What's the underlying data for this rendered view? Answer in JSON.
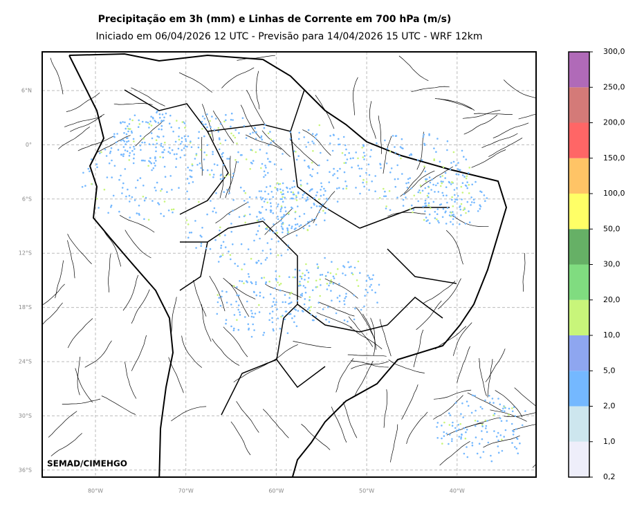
{
  "header": {
    "title": "Precipitação em 3h (mm) e Linhas de Corrente em 700 hPa (m/s)",
    "subtitle": "Iniciado em 06/04/2026 12 UTC - Previsão para 14/04/2026 15 UTC - WRF 12km"
  },
  "map": {
    "lat_labels": [
      "6°N",
      "0°",
      "6°S",
      "12°S",
      "18°S",
      "24°S",
      "30°S",
      "36°S"
    ],
    "lon_labels": [
      "80°W",
      "70°W",
      "60°W",
      "50°W",
      "40°W"
    ],
    "credit": "SEMAD/CIMEHGO"
  },
  "colorbar": {
    "labels": [
      "0,2",
      "1,0",
      "2,0",
      "5,0",
      "10,0",
      "20,0",
      "30,0",
      "50,0",
      "100,0",
      "150,0",
      "200,0",
      "250,0",
      "300,0"
    ],
    "colors": [
      "#eeeefa",
      "#cde6ee",
      "#74b8ff",
      "#8ea6f0",
      "#c8f57a",
      "#80dc80",
      "#66b066",
      "#ffff66",
      "#ffc466",
      "#ff6666",
      "#d47a78",
      "#b06ab8"
    ]
  }
}
